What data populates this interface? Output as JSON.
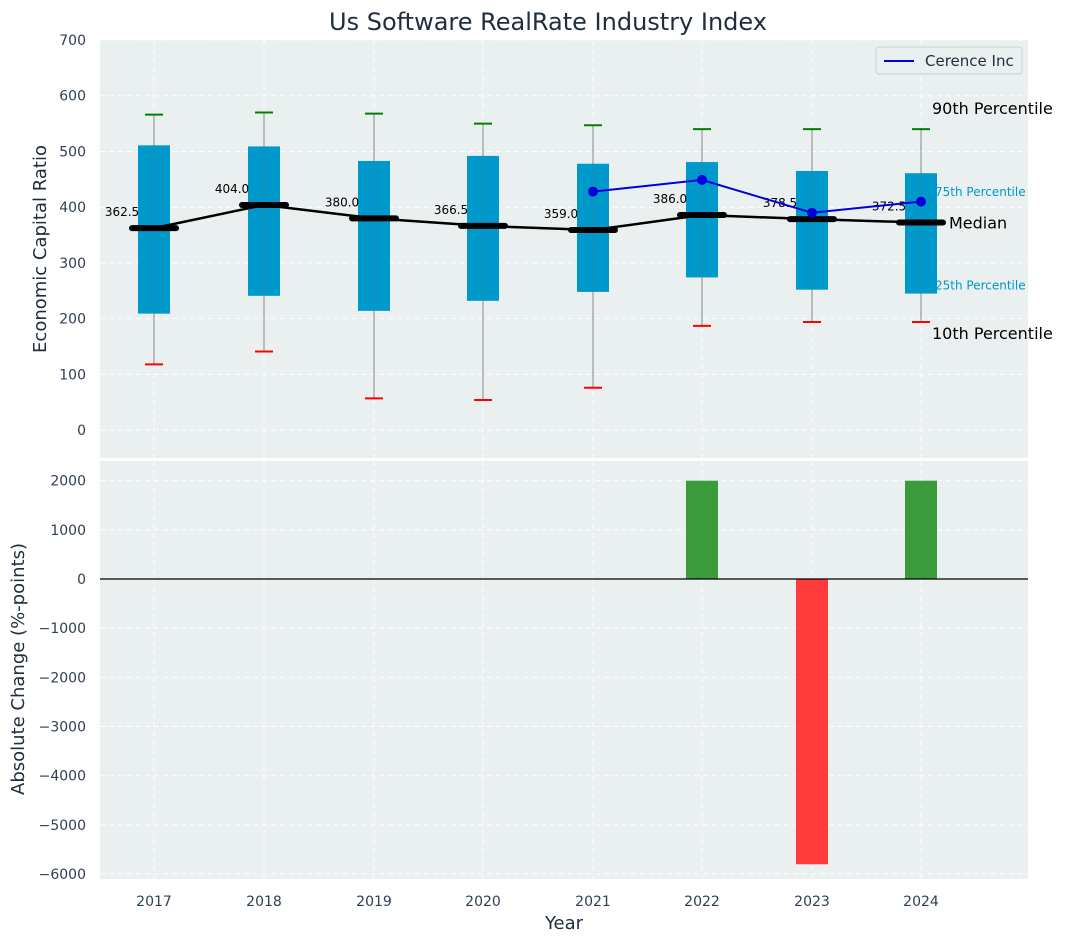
{
  "chart_data": [
    {
      "type": "box",
      "title": "Us Software RealRate Industry Index",
      "ylabel": "Economic Capital Ratio",
      "ylim": [
        -50,
        700
      ],
      "yticks": [
        0,
        100,
        200,
        300,
        400,
        500,
        600,
        700
      ],
      "categories": [
        "2017",
        "2018",
        "2019",
        "2020",
        "2021",
        "2022",
        "2023",
        "2024"
      ],
      "p10": [
        118,
        141,
        57,
        54,
        76,
        187,
        194,
        194
      ],
      "p25": [
        209,
        241,
        214,
        232,
        248,
        274,
        252,
        245
      ],
      "median": [
        362.5,
        404.0,
        380.0,
        366.5,
        359.0,
        386.0,
        378.5,
        372.5
      ],
      "median_labels": [
        "362.5",
        "404.0",
        "380.0",
        "366.5",
        "359.0",
        "386.0",
        "378.5",
        "372.5"
      ],
      "p75": [
        511,
        509,
        483,
        492,
        478,
        481,
        465,
        461
      ],
      "p90": [
        566,
        570,
        568,
        550,
        547,
        540,
        540,
        540
      ],
      "company": {
        "name": "Cerence Inc",
        "categories": [
          "2021",
          "2022",
          "2023",
          "2024"
        ],
        "values": [
          428,
          449,
          390,
          410
        ],
        "color": "#0000dd"
      },
      "legend": [
        "Cerence Inc"
      ],
      "annotations": {
        "p90": "90th Percentile",
        "p75": "75th Percentile",
        "median": "Median",
        "p25": "25th Percentile",
        "p10": "10th Percentile"
      },
      "colors": {
        "box": "#0099cc",
        "median": "#000000",
        "p90_cap": "#008000",
        "p10_cap": "#ff0000",
        "whisker": "#888888"
      }
    },
    {
      "type": "bar",
      "ylabel": "Absolute Change (%-points)",
      "xlabel": "Year",
      "ylim": [
        -6100,
        2400
      ],
      "yticks": [
        -6000,
        -5000,
        -4000,
        -3000,
        -2000,
        -1000,
        0,
        1000,
        2000
      ],
      "categories": [
        "2017",
        "2018",
        "2019",
        "2020",
        "2021",
        "2022",
        "2023",
        "2024"
      ],
      "values": [
        null,
        null,
        null,
        null,
        null,
        2000,
        -5800,
        2000
      ],
      "colors": {
        "positive": "#3a9b3a",
        "negative": "#ff3b3b"
      }
    }
  ]
}
